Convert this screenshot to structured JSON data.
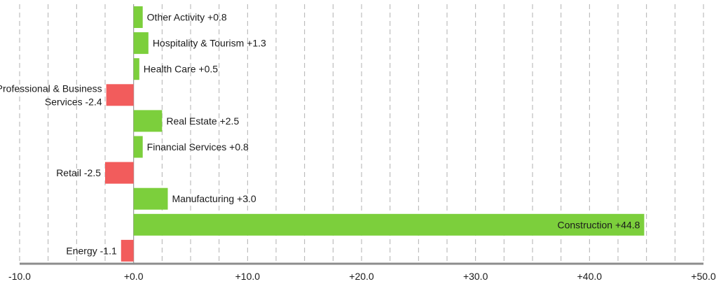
{
  "chart_data": {
    "type": "bar",
    "orientation": "horizontal",
    "title": "",
    "xlabel": "",
    "ylabel": "",
    "xlim": [
      -10,
      50
    ],
    "x_ticks": [
      {
        "value": -10,
        "label": "-10.0"
      },
      {
        "value": 0,
        "label": "+0.0"
      },
      {
        "value": 10,
        "label": "+10.0"
      },
      {
        "value": 20,
        "label": "+20.0"
      },
      {
        "value": 30,
        "label": "+30.0"
      },
      {
        "value": 40,
        "label": "+40.0"
      },
      {
        "value": 50,
        "label": "+50.0"
      }
    ],
    "grid": true,
    "grid_step": 2.5,
    "colors": {
      "positive": "#7ccf3c",
      "negative": "#f25c5c"
    },
    "bars": [
      {
        "category": "Other Activity",
        "value": 0.8,
        "label": [
          "Other Activity +0.8"
        ]
      },
      {
        "category": "Hospitality & Tourism",
        "value": 1.3,
        "label": [
          "Hospitality & Tourism +1.3"
        ]
      },
      {
        "category": "Health Care",
        "value": 0.5,
        "label": [
          "Health Care +0.5"
        ]
      },
      {
        "category": "Professional & Business Services",
        "value": -2.4,
        "label": [
          "Professional & Business",
          "Services -2.4"
        ]
      },
      {
        "category": "Real Estate",
        "value": 2.5,
        "label": [
          "Real Estate +2.5"
        ]
      },
      {
        "category": "Financial Services",
        "value": 0.8,
        "label": [
          "Financial Services +0.8"
        ]
      },
      {
        "category": "Retail",
        "value": -2.5,
        "label": [
          "Retail -2.5"
        ]
      },
      {
        "category": "Manufacturing",
        "value": 3.0,
        "label": [
          "Manufacturing +3.0"
        ]
      },
      {
        "category": "Construction",
        "value": 44.8,
        "label": [
          "Construction +44.8"
        ]
      },
      {
        "category": "Energy",
        "value": -1.1,
        "label": [
          "Energy -1.1"
        ]
      }
    ]
  }
}
